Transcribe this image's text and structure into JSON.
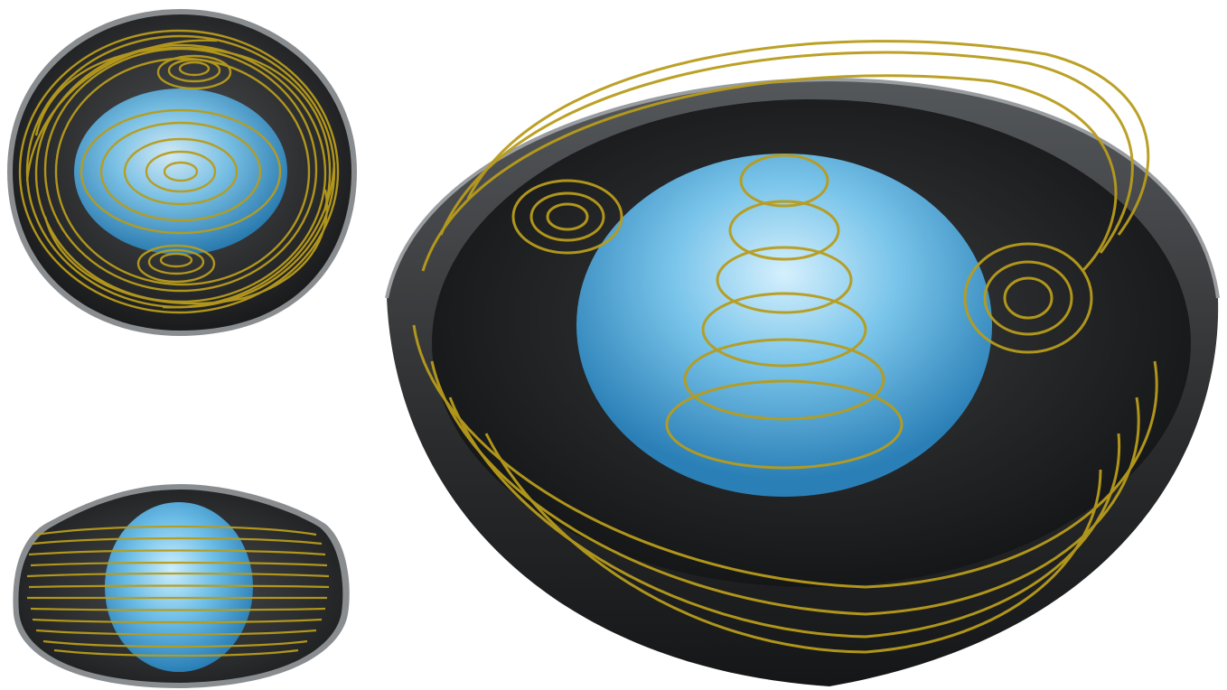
{
  "figure": {
    "panels": [
      {
        "id": "top-view",
        "content": "vessel-with-streamlines"
      },
      {
        "id": "side-view",
        "content": "vessel-with-streamlines"
      },
      {
        "id": "perspective-view",
        "content": "vessel-with-streamlines"
      }
    ]
  },
  "colors": {
    "background": "#ffffff",
    "vessel_dark": "#2e2f31",
    "vessel_rim": "#8a8d90",
    "fluid_light": "#a9dcf5",
    "fluid_mid": "#5bb3e0",
    "fluid_dark": "#2a7fb6",
    "streamline": "#b89c1c",
    "streamline_dark": "#6b5a0e"
  }
}
